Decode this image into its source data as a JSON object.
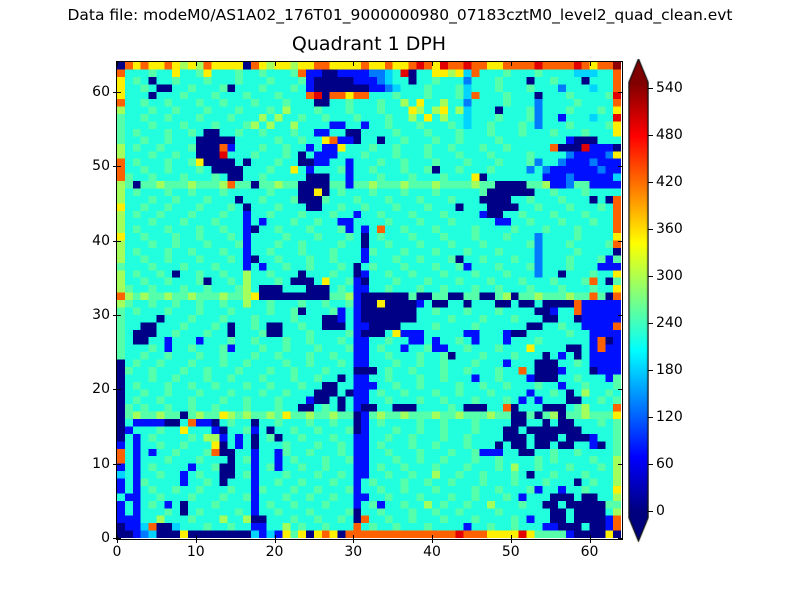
{
  "header": {
    "datafile": "Data file: modeM0/AS1A02_176T01_9000000980_07183cztM0_level2_quad_clean.evt"
  },
  "plot": {
    "title": "Quadrant 1 DPH",
    "x_ticks": [
      0,
      10,
      20,
      30,
      40,
      50,
      60
    ],
    "y_ticks": [
      0,
      10,
      20,
      30,
      40,
      50,
      60
    ]
  },
  "colorbar": {
    "ticks": [
      0,
      60,
      120,
      180,
      240,
      300,
      360,
      420,
      480,
      540
    ],
    "extend": "both",
    "colormap": "jet"
  },
  "colors": {
    "background": "#ffffff",
    "frame": "#000000",
    "nav_low": "#000080",
    "high": "#8b0000"
  },
  "chart_data": {
    "type": "heatmap",
    "title": "Quadrant 1 DPH",
    "xlabel": "",
    "ylabel": "",
    "x_range": [
      0,
      64
    ],
    "y_range": [
      0,
      64
    ],
    "colormap": "jet",
    "vmin": 0,
    "vmax": 570,
    "colorbar_ticks": [
      0,
      60,
      120,
      180,
      240,
      300,
      360,
      420,
      480,
      540
    ],
    "value_key": {
      "0": 4,
      "1": 80,
      "2": 140,
      "3": 190,
      "4": 232,
      "5": 262,
      "6": 305,
      "7": 365,
      "8": 445,
      "9": 515,
      "A": 560
    },
    "rows_bottom_to_top": [
      "0012300070000000031317570787088888888888888988877779755551000070",
      "0113800344454454411446454454448454454445444414454454441100040018",
      "1114464445444644600444544544540844544544454445444454144004000018",
      "1414445404544445414454445444450445444544544544445444444004000046",
      "1414541404445444414544544454441451445446454454464445440040000055",
      "4114454445444544514445445445441144544454445445444541444000400446",
      "1414544544544454415444544544451445445444544445445444514414454447",
      "1415444414454044414454454445441454445445445444544454445444045446",
      "3414454414544004514445444544541144544544644544544454044544454446",
      "1414544441445004414514454454441145445444544454445464454445444546",
      "8414445444544404514414544454451144454454454445445444454544445446",
      "8414144544458004414415445444541144544454445445111440044544544445",
      "1414454454447041404445444544541145444544544454440400400400441045",
      "0414544445466141404504454445441144544544454454444000400040001445",
      "0144454474441044514044544544450144454454454445444004000000044445",
      "0411110048110454404454445445440145444454454445444400440400444545",
      "0565565505655765655657556556550156556555655655565500505605565557",
      "0545445445445444544454400454041004400044445400044804440004564448",
      "0454454445444544544454441004041144544454454445444541414440044545",
      "0445445444544454445445444000401145445444544544454444144540464454",
      "0454445445445444544544454400441114454454444544544544454414454445",
      "0444544544454454445444544544041144544454454441445444100044544415",
      "0544544454454445444544544454440004544544454454445448400014440111",
      "0454454445444544544445445444541144454454454445444144400044541111",
      "5445445444544544454454445445441144544454450444544454440414041111",
      "5444541445444514445445444544451145441445114454445444744440041811",
      "5400441444144454454445445444541144544114144541444144454444441801",
      "5400044544454404445004445444451000471114444411444100444445441111",
      "5440044454445404454004454400041100004444544445444444004454411118",
      "5444404445444544454444544400141000000044445444544454440044011111",
      "5454445444544454444544504445141000000044544454445444400144811111",
      "6544544544544544644544454454451007000014004404440040040000811111",
      "8656556556555655670000000005561000000500550055005605565556558508",
      "6544544454454445640004440004541144544454454445445444544454445447",
      "6445445444504454644454000474451044454445444544454445444544458405",
      "6454454044544544644544404445440144544544454445444544424404445447",
      "5444544454445444141445445444540454445444544514445444524445444111",
      "6445445444544454104454445445444144454454445044544454424445444515",
      "6454445445444544144544454445444154445444544454445444424444544440",
      "6444544544454445144454454444544044544454445444544444524445444458",
      "7445444544544454144445444544454045444544454445444544424444544447",
      "6454445444544544104454445444514148445444544445444454445444544448",
      "6444544454445444141444544544114444544454445444441144544454445448",
      "6454454445444544144544454445441445444544454444100445444544454448",
      "7445445444544454044454440044544544454445444044400004454445444548",
      "6444544544454440445444500054445444544454445444000044544454440408",
      "6454445445444544444544400704544454445444544444500000044544454444",
      "6505565556555685505565500005515565556555655556550000556112551111",
      "8544544454445400445444440004414445444544454447044444441112111113",
      "8445445444540000444544741444514454445445044544454444242111111211",
      "8454445445700004044454400114414445445444544454445444524421112111",
      "6444544544000944454445404111444544454445444544454444544442111127",
      "6454454445000814445445441411744454454445445444544544444800091110",
      "5445445444000004444454454478110440445444544544445444444441000444",
      "5454445445400445445444544114400444454445444544454445444544454447",
      "5444544454445444564644644441144144544454445434454445424445444457",
      "5445445444544454446464454454445444544647464434445444524414443449",
      "6444544544454445444546444544454445444764674634440444524445444547",
      "8445445444544544454445444004454445446474464424444544424444544448",
      "7444044454445444544454448908878844454445444538444544404445444459",
      "7445400445444504445444541000000011234445444534445444544424443448",
      "7454044544454445444544451000001112344044544424445444044544404448",
      "8444544744574445445444581100111122349044776738444544454444333448",
      "087877876768777708767767788777787787789879889887788889888898788A"
    ]
  },
  "layout_note": "64x64 detector plane histogram, jet colormap, colorbar extended both ends"
}
